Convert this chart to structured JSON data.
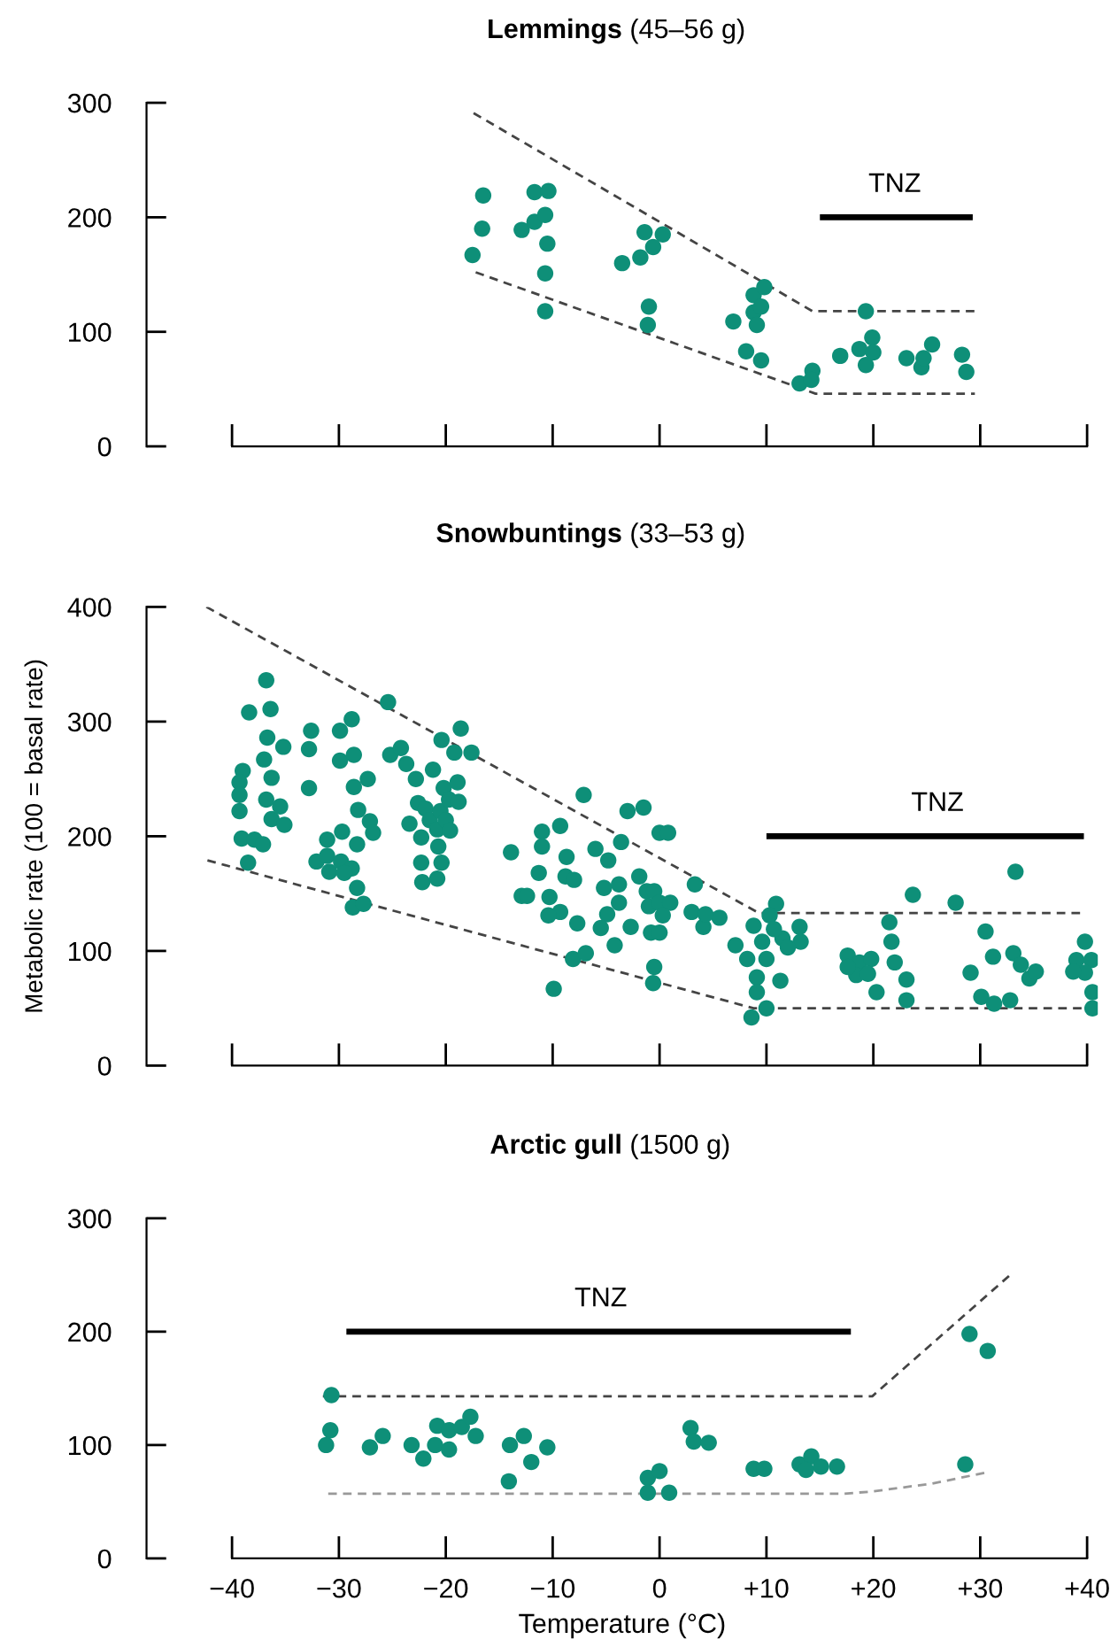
{
  "chart_data": [
    {
      "type": "scatter",
      "title": "Lemmings (45–56 g)",
      "grid": false,
      "legend": false,
      "tick_labels": "y",
      "xlim": [
        -48,
        41
      ],
      "ylim": [
        0,
        300
      ],
      "yticks": [
        0,
        100,
        200,
        300
      ],
      "xticks": [
        -40,
        -30,
        -20,
        -10,
        0,
        10,
        20,
        30,
        40
      ],
      "annotations": [
        {
          "text": "TNZ",
          "x": 22,
          "y": 200
        }
      ],
      "series": [
        {
          "marker": "circle",
          "color": "#0e8f78",
          "x": [
            -17.5,
            -16.5,
            -16.6,
            -11.7,
            -10.4,
            -12.9,
            -11.7,
            -10.7,
            -10.5,
            -10.7,
            -10.7,
            -3.5,
            -1.8,
            -1.4,
            0.3,
            -0.6,
            -1.0,
            -1.1,
            6.9,
            8.8,
            9.8,
            8.8,
            9.5,
            9.1,
            8.1,
            9.5,
            13.1,
            14.3,
            14.2,
            16.9,
            18.7,
            19.3,
            19.9,
            20.0,
            19.3,
            23.1,
            24.5,
            25.5,
            24.7,
            28.3,
            28.7
          ],
          "values": [
            167,
            219,
            190,
            222,
            223,
            189,
            196,
            202,
            177,
            151,
            118,
            160,
            165,
            187,
            185,
            174,
            122,
            106,
            109,
            132,
            139,
            117,
            122,
            106,
            83,
            75,
            55,
            66,
            58,
            79,
            85,
            118,
            95,
            82,
            71,
            77,
            69,
            89,
            77,
            80,
            65
          ]
        },
        {
          "type": "line",
          "marker": "none",
          "color": "#444444",
          "line_style": "dashed",
          "x": [
            -17.4,
            14.3,
            29.5
          ],
          "values": [
            291,
            118,
            118
          ]
        },
        {
          "type": "line",
          "marker": "none",
          "color": "#444444",
          "line_style": "dashed",
          "x": [
            -17.2,
            14.6,
            29.5
          ],
          "values": [
            152,
            46,
            46
          ]
        },
        {
          "type": "line",
          "marker": "none",
          "color": "#000000",
          "line_style": "solid",
          "x": [
            15,
            29.3
          ],
          "values": [
            200,
            200
          ]
        }
      ]
    },
    {
      "type": "scatter",
      "title": "Snowbuntings (33–53 g)",
      "ylabel": "Metabolic rate (100 = basal rate)",
      "grid": false,
      "legend": false,
      "tick_labels": "y",
      "xlim": [
        -48,
        41
      ],
      "ylim": [
        0,
        400
      ],
      "yticks": [
        0,
        100,
        200,
        300,
        400
      ],
      "xticks": [
        -40,
        -30,
        -20,
        -10,
        0,
        10,
        20,
        30,
        40
      ],
      "annotations": [
        {
          "text": "TNZ",
          "x": 26,
          "y": 200
        }
      ],
      "series": [
        {
          "marker": "circle",
          "color": "#0e8f78",
          "x": [
            -39.0,
            -39.3,
            -39.3,
            -39.3,
            -39.1,
            -38.5,
            -38.4,
            -37.9,
            -37.1,
            -36.8,
            -36.4,
            -36.7,
            -37.0,
            -36.3,
            -36.8,
            -36.3,
            -35.5,
            -35.2,
            -35.1,
            -32.6,
            -32.8,
            -32.8,
            -32.1,
            -31.1,
            -31.1,
            -30.9,
            -29.9,
            -28.8,
            -29.9,
            -28.6,
            -28.6,
            -27.3,
            -29.7,
            -28.2,
            -27.1,
            -26.8,
            -28.3,
            -29.8,
            -28.8,
            -29.5,
            -28.3,
            -28.7,
            -27.7,
            -25.4,
            -25.2,
            -24.2,
            -23.7,
            -22.8,
            -22.6,
            -23.4,
            -22.3,
            -21.9,
            -22.3,
            -22.2,
            -21.2,
            -20.4,
            -20.2,
            -21.5,
            -20.8,
            -20.5,
            -20.0,
            -20.7,
            -20.8,
            -20.4,
            -19.6,
            -19.7,
            -18.9,
            -18.8,
            -18.6,
            -19.2,
            -17.6,
            -13.9,
            -12.9,
            -9.9,
            -11.0,
            -11.0,
            -9.3,
            -8.7,
            -11.3,
            -12.4,
            -10.3,
            -8.8,
            -8.0,
            -9.3,
            -10.4,
            -7.7,
            -8.1,
            -6.9,
            -7.1,
            -6.0,
            -4.8,
            -5.2,
            -3.8,
            -3.8,
            -4.9,
            -5.5,
            -4.2,
            -3.6,
            -3.0,
            -1.5,
            -2.7,
            -1.9,
            -1.2,
            -1.0,
            -0.5,
            0.0,
            -0.8,
            -0.5,
            -0.6,
            0.0,
            0.8,
            1.0,
            0.3,
            0.0,
            3.3,
            3.0,
            4.1,
            5.6,
            4.3,
            10.9,
            10.3,
            8.8,
            7.1,
            8.2,
            9.1,
            9.1,
            10.0,
            8.6,
            10.0,
            11.5,
            11.3,
            13.1,
            13.2,
            12.0,
            9.6,
            10.7,
            17.6,
            18.7,
            19.8,
            18.4,
            20.3,
            21.5,
            21.7,
            22.0,
            23.1,
            23.1,
            17.6,
            19.5,
            23.7,
            27.7,
            33.3,
            30.5,
            31.2,
            29.1,
            33.1,
            33.8,
            34.6,
            35.2,
            30.1,
            31.3,
            32.8,
            39.8,
            39.0,
            40.4,
            39.8,
            40.5,
            40.5,
            38.7
          ],
          "values": [
            257,
            247,
            236,
            222,
            198,
            177,
            308,
            197,
            193,
            336,
            311,
            286,
            267,
            251,
            232,
            215,
            226,
            278,
            210,
            292,
            276,
            242,
            178,
            197,
            183,
            169,
            292,
            302,
            266,
            271,
            243,
            250,
            204,
            223,
            213,
            203,
            193,
            178,
            172,
            168,
            155,
            138,
            141,
            317,
            271,
            277,
            263,
            250,
            229,
            211,
            199,
            224,
            177,
            160,
            258,
            284,
            242,
            214,
            206,
            222,
            214,
            191,
            163,
            177,
            205,
            232,
            247,
            230,
            294,
            273,
            273,
            186,
            148,
            67,
            204,
            191,
            209,
            182,
            168,
            148,
            147,
            165,
            162,
            134,
            131,
            124,
            93,
            98,
            236,
            189,
            179,
            155,
            158,
            142,
            132,
            120,
            105,
            195,
            222,
            225,
            121,
            165,
            152,
            139,
            152,
            142,
            116,
            86,
            72,
            203,
            203,
            142,
            131,
            116,
            158,
            134,
            121,
            129,
            132,
            141,
            131,
            122,
            105,
            93,
            77,
            64,
            50,
            42,
            93,
            111,
            74,
            121,
            108,
            103,
            108,
            119,
            96,
            90,
            93,
            79,
            64,
            125,
            108,
            90,
            75,
            57,
            86,
            80,
            149,
            142,
            169,
            117,
            95,
            81,
            98,
            88,
            76,
            82,
            60,
            54,
            57,
            108,
            92,
            92,
            81,
            64,
            50,
            82
          ]
        },
        {
          "type": "line",
          "marker": "none",
          "color": "#444444",
          "line_style": "dashed",
          "x": [
            -42.4,
            9.3,
            39.8
          ],
          "values": [
            400,
            133,
            133
          ]
        },
        {
          "type": "line",
          "marker": "none",
          "color": "#444444",
          "line_style": "dashed",
          "x": [
            -42.3,
            8.8,
            39.8
          ],
          "values": [
            179,
            50,
            50
          ]
        },
        {
          "type": "line",
          "marker": "none",
          "color": "#000000",
          "line_style": "solid",
          "x": [
            10,
            39.7
          ],
          "values": [
            200,
            200
          ]
        }
      ]
    },
    {
      "type": "scatter",
      "title": "Arctic gull (1500 g)",
      "xlabel": "Temperature (°C)",
      "grid": false,
      "legend": false,
      "xlim": [
        -48,
        41
      ],
      "ylim": [
        0,
        300
      ],
      "yticks": [
        0,
        100,
        200,
        300
      ],
      "xticks": [
        {
          "value": -40,
          "label": "−40"
        },
        {
          "value": -30,
          "label": "−30"
        },
        {
          "value": -20,
          "label": "−20"
        },
        {
          "value": -10,
          "label": "−10"
        },
        {
          "value": 0,
          "label": "0"
        },
        {
          "value": 10,
          "label": "+10"
        },
        {
          "value": 20,
          "label": "+20"
        },
        {
          "value": 30,
          "label": "+30"
        },
        {
          "value": 40,
          "label": "+40"
        }
      ],
      "annotations": [
        {
          "text": "TNZ",
          "x": -5.5,
          "y": 200
        }
      ],
      "series": [
        {
          "marker": "circle",
          "color": "#0e8f78",
          "x": [
            -30.7,
            -30.8,
            -31.2,
            -27.1,
            -25.9,
            -23.2,
            -22.1,
            -20.8,
            -21.0,
            -19.7,
            -19.7,
            -18.5,
            -17.7,
            -17.2,
            -14.1,
            -14.0,
            -12.7,
            -12.0,
            -10.5,
            -1.1,
            0.0,
            -1.1,
            0.9,
            2.9,
            3.2,
            4.6,
            8.8,
            9.8,
            13.1,
            14.2,
            13.7,
            15.1,
            16.6,
            29.0,
            30.7,
            28.6
          ],
          "values": [
            144,
            113,
            100,
            98,
            108,
            100,
            88,
            117,
            100,
            113,
            96,
            116,
            125,
            108,
            68,
            100,
            108,
            85,
            98,
            71,
            77,
            58,
            58,
            115,
            103,
            102,
            79,
            79,
            83,
            90,
            78,
            81,
            81,
            198,
            183,
            83
          ]
        },
        {
          "type": "line",
          "marker": "none",
          "color": "#444444",
          "line_style": "dashed",
          "x": [
            -31.5,
            19.9,
            32.8
          ],
          "values": [
            143,
            143,
            250
          ]
        },
        {
          "type": "line",
          "marker": "none",
          "color": "#999999",
          "line_style": "dashed",
          "x": [
            -31,
            17.1,
            19.9,
            25.5,
            30.7
          ],
          "values": [
            57,
            57,
            59,
            66,
            76
          ]
        },
        {
          "type": "line",
          "marker": "none",
          "color": "#000000",
          "line_style": "solid",
          "x": [
            -29.3,
            17.9
          ],
          "values": [
            200,
            200
          ]
        }
      ]
    }
  ]
}
